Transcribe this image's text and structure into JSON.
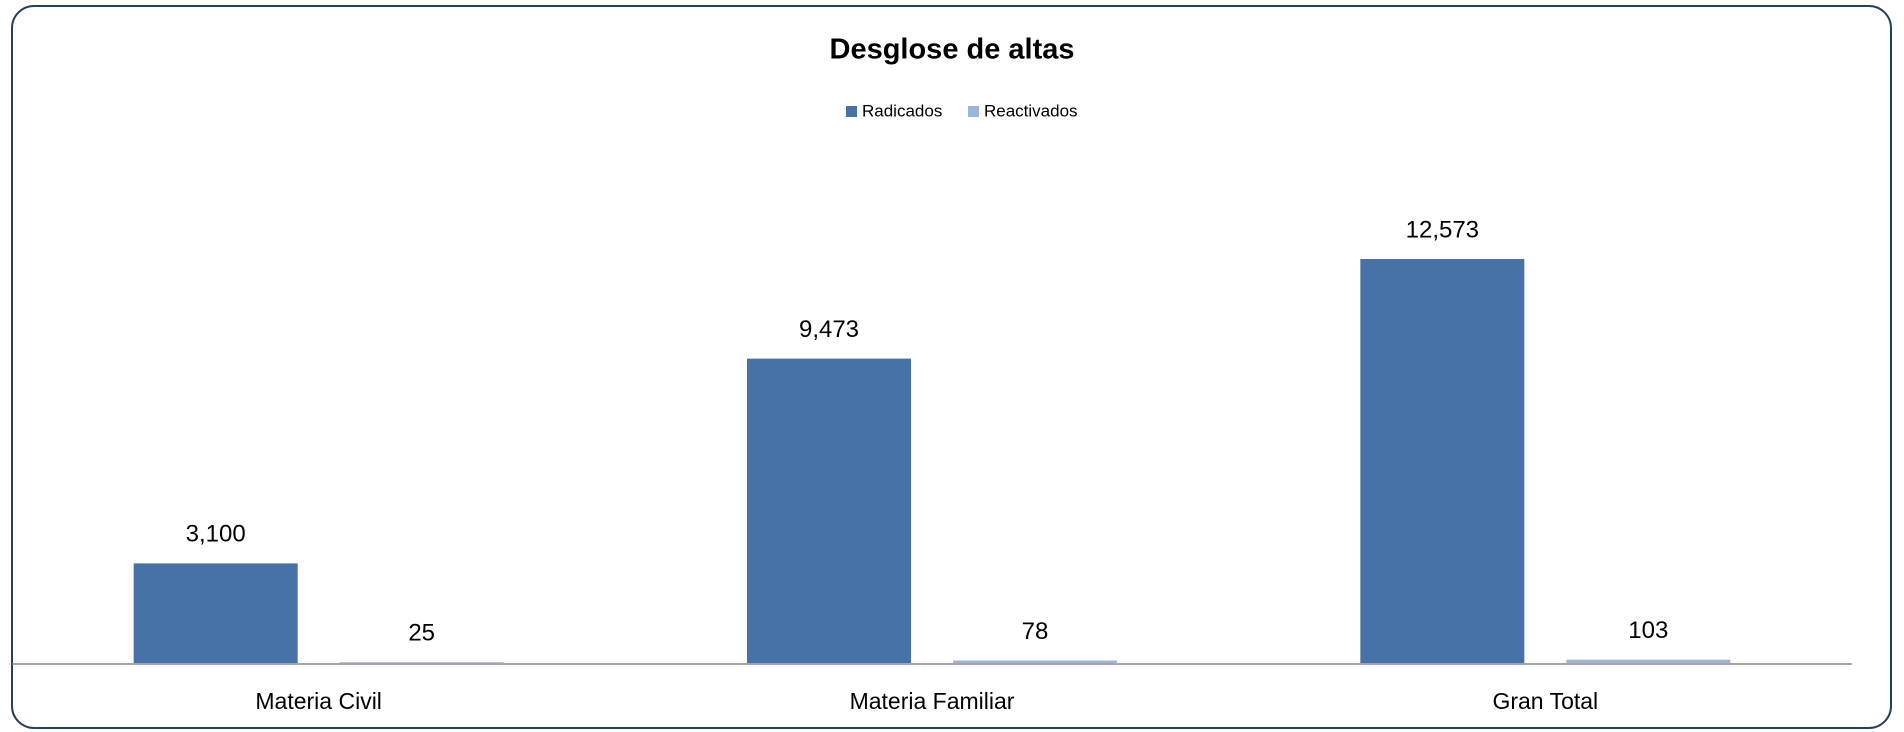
{
  "chart_data": {
    "type": "bar",
    "title": "Desglose de altas",
    "categories": [
      "Materia Civil",
      "Materia Familiar",
      "Gran Total"
    ],
    "series": [
      {
        "name": "Radicados",
        "color": "#4672a7",
        "values": [
          3100,
          9473,
          12573
        ],
        "value_labels": [
          "3,100",
          "9,473",
          "12,573"
        ]
      },
      {
        "name": "Reactivados",
        "color": "#9db5d8",
        "values": [
          25,
          78,
          103
        ],
        "value_labels": [
          "25",
          "78",
          "103"
        ]
      }
    ],
    "legend": "top"
  }
}
